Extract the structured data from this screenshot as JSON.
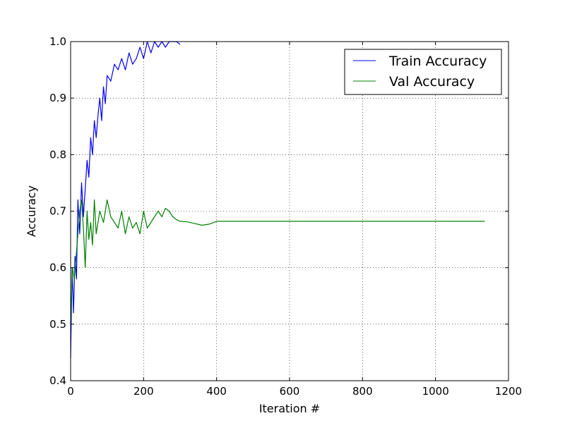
{
  "chart_data": {
    "type": "line",
    "title": "",
    "xlabel": "Iteration #",
    "ylabel": "Accuracy",
    "xlim": [
      0,
      1200
    ],
    "ylim": [
      0.4,
      1.0
    ],
    "xticks": [
      0,
      200,
      400,
      600,
      800,
      1000,
      1200
    ],
    "yticks": [
      0.4,
      0.5,
      0.6,
      0.7,
      0.8,
      0.9,
      1.0
    ],
    "xtick_labels": [
      "0",
      "200",
      "400",
      "600",
      "800",
      "1000",
      "1200"
    ],
    "ytick_labels": [
      "0.4",
      "0.5",
      "0.6",
      "0.7",
      "0.8",
      "0.9",
      "1.0"
    ],
    "grid": true,
    "legend_position": "top-right",
    "series": [
      {
        "name": "Train Accuracy",
        "color": "#0000ff",
        "x": [
          0,
          4,
          8,
          12,
          16,
          20,
          25,
          30,
          35,
          40,
          45,
          50,
          55,
          60,
          65,
          70,
          75,
          80,
          85,
          90,
          95,
          100,
          110,
          120,
          130,
          140,
          150,
          160,
          170,
          180,
          190,
          200,
          210,
          220,
          230,
          240,
          250,
          260,
          270,
          280,
          290,
          300
        ],
        "y": [
          0.44,
          0.6,
          0.52,
          0.62,
          0.58,
          0.72,
          0.66,
          0.75,
          0.69,
          0.74,
          0.79,
          0.76,
          0.83,
          0.8,
          0.86,
          0.83,
          0.87,
          0.9,
          0.86,
          0.92,
          0.89,
          0.94,
          0.93,
          0.96,
          0.95,
          0.97,
          0.95,
          0.98,
          0.96,
          0.97,
          0.99,
          0.97,
          1.0,
          0.98,
          1.0,
          0.99,
          1.0,
          0.99,
          1.0,
          1.0,
          1.0,
          0.995
        ]
      },
      {
        "name": "Val Accuracy",
        "color": "#008000",
        "x": [
          0,
          5,
          10,
          15,
          20,
          25,
          30,
          35,
          40,
          45,
          50,
          55,
          60,
          65,
          70,
          80,
          90,
          100,
          110,
          120,
          130,
          140,
          150,
          160,
          170,
          180,
          190,
          200,
          210,
          220,
          230,
          240,
          250,
          260,
          270,
          280,
          290,
          300,
          320,
          340,
          360,
          380,
          400,
          450,
          500,
          550,
          600,
          650,
          700,
          750,
          800,
          850,
          900,
          950,
          1000,
          1050,
          1100,
          1135
        ],
        "y": [
          0.5,
          0.6,
          0.58,
          0.62,
          0.66,
          0.7,
          0.72,
          0.67,
          0.6,
          0.7,
          0.65,
          0.68,
          0.64,
          0.72,
          0.66,
          0.7,
          0.68,
          0.72,
          0.69,
          0.68,
          0.67,
          0.7,
          0.66,
          0.69,
          0.67,
          0.68,
          0.66,
          0.7,
          0.67,
          0.68,
          0.69,
          0.7,
          0.69,
          0.705,
          0.7,
          0.69,
          0.685,
          0.682,
          0.681,
          0.678,
          0.675,
          0.677,
          0.682,
          0.682,
          0.682,
          0.682,
          0.682,
          0.682,
          0.682,
          0.682,
          0.682,
          0.682,
          0.682,
          0.682,
          0.682,
          0.682,
          0.682,
          0.682
        ]
      }
    ]
  }
}
